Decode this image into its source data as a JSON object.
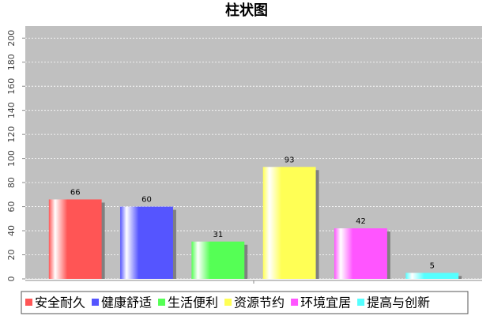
{
  "chart_data": {
    "type": "bar",
    "title": "柱状图",
    "categories": [
      null
    ],
    "series": [
      {
        "name": "安全耐久",
        "color": "#ff5555",
        "values": [
          66
        ]
      },
      {
        "name": "健康舒适",
        "color": "#5555ff",
        "values": [
          60
        ]
      },
      {
        "name": "生活便利",
        "color": "#55ff55",
        "values": [
          31
        ]
      },
      {
        "name": "资源节约",
        "color": "#ffff55",
        "values": [
          93
        ]
      },
      {
        "name": "环境宜居",
        "color": "#ff55ff",
        "values": [
          42
        ]
      },
      {
        "name": "提高与创新",
        "color": "#55ffff",
        "values": [
          5
        ]
      }
    ],
    "ylim": [
      0,
      210
    ],
    "yticks": [
      0,
      20,
      40,
      60,
      80,
      100,
      120,
      140,
      160,
      180,
      200
    ],
    "grid": true,
    "legend": "bottom"
  }
}
